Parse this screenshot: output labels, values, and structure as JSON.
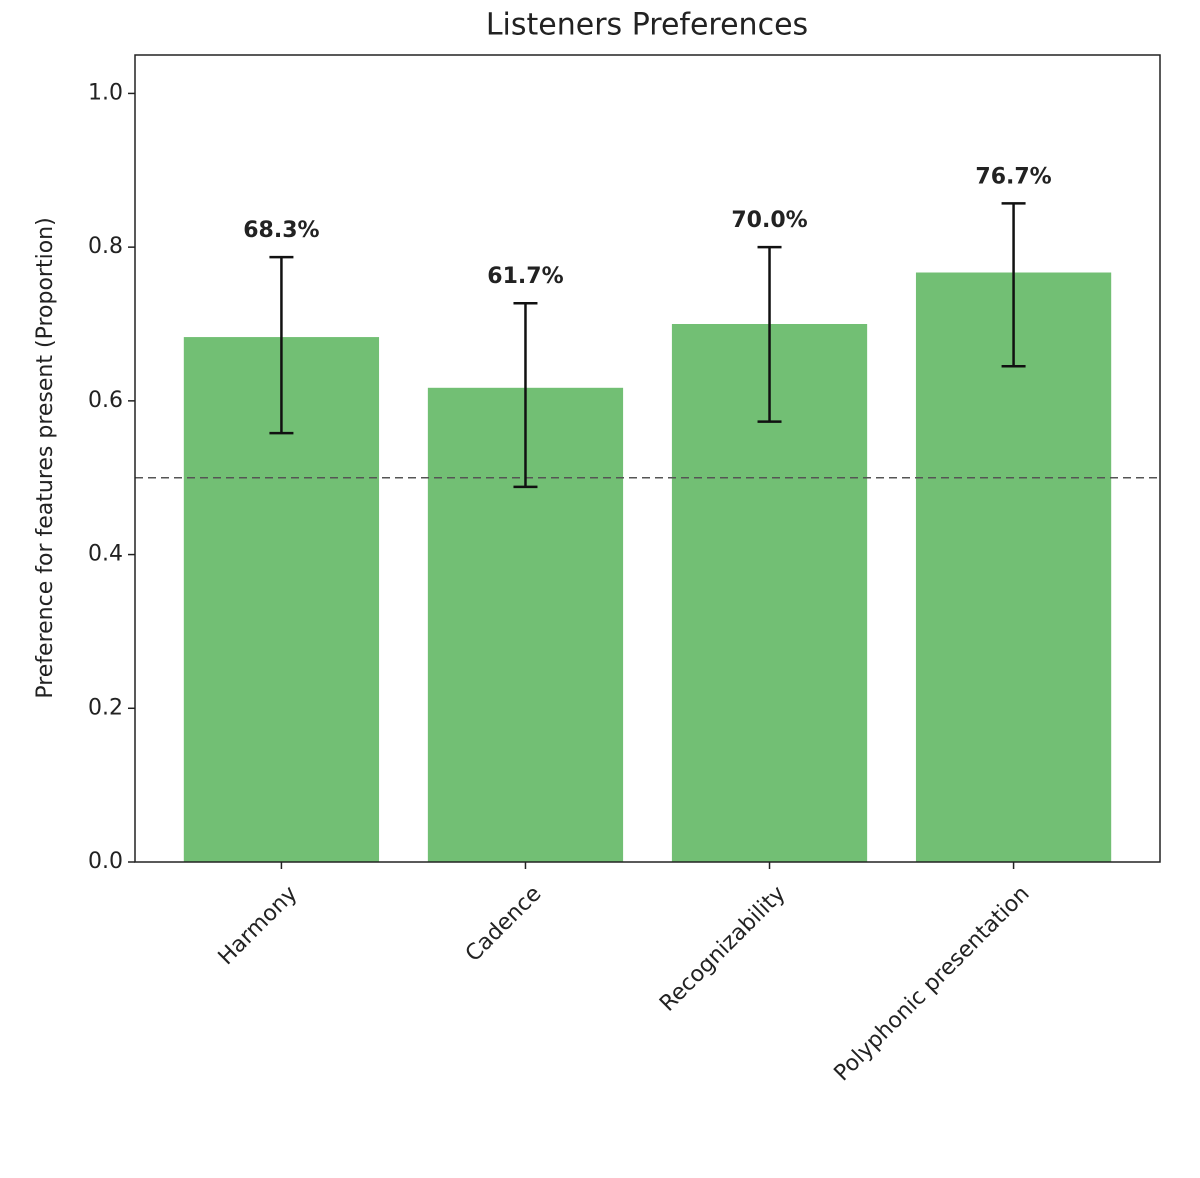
{
  "chart_data": {
    "type": "bar",
    "title": "Listeners Preferences",
    "y_label": "Preference for features present (Proportion)",
    "categories": [
      "Harmony",
      "Cadence",
      "Recognizability",
      "Polyphonic presentation"
    ],
    "values": [
      0.683,
      0.617,
      0.7,
      0.767
    ],
    "value_labels": [
      "68.3%",
      "61.7%",
      "70.0%",
      "76.7%"
    ],
    "ci_lower": [
      0.558,
      0.488,
      0.573,
      0.645
    ],
    "ci_upper": [
      0.787,
      0.727,
      0.8,
      0.857
    ],
    "reference_line": 0.5,
    "color": "#72bf74",
    "ylim": [
      0,
      1.05
    ],
    "yticks": [
      {
        "value": 0,
        "label": "0.0"
      },
      0.2,
      0.4,
      0.6,
      0.8,
      {
        "value": 1,
        "label": "1.0"
      }
    ],
    "grid": false
  }
}
